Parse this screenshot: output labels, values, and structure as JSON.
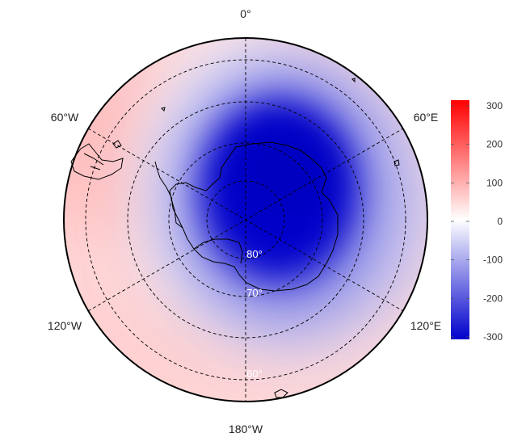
{
  "figure": {
    "projection": "south polar stereographic",
    "longitude_labels": {
      "top": "0°",
      "upper_left": "60°W",
      "upper_right": "60°E",
      "lower_left": "120°W",
      "lower_right": "120°E",
      "bottom": "180°W"
    },
    "latitude_labels": [
      "80°",
      "70°",
      "60°"
    ],
    "field_colors": {
      "negative": "#0000cc",
      "neutral": "#ffffff",
      "positive": "#ff0000"
    }
  },
  "colorbar": {
    "ticks": [
      "300",
      "200",
      "100",
      "0",
      "-100",
      "-200",
      "-300"
    ],
    "range": [
      -300,
      300
    ]
  }
}
